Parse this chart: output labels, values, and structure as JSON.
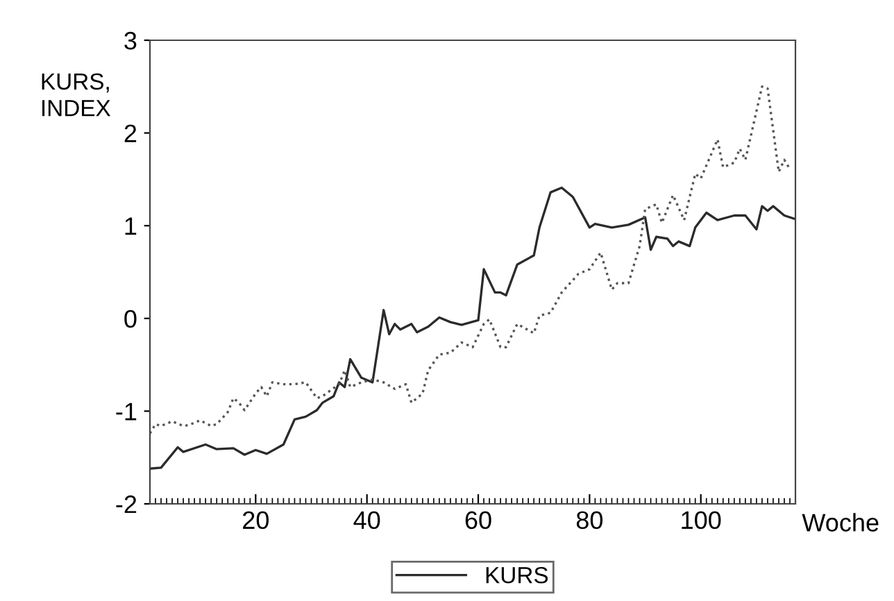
{
  "chart_data": {
    "type": "line",
    "xlabel": "Woche",
    "ylabel": "KURS, INDEX",
    "xlim": [
      1,
      117
    ],
    "ylim": [
      -2,
      3
    ],
    "xticks": [
      20,
      40,
      60,
      80,
      100
    ],
    "yticks": [
      -2,
      -1,
      0,
      1,
      2,
      3
    ],
    "grid": false,
    "legend": "bottom",
    "series": [
      {
        "name": "KURS",
        "color": "#2b2b2b",
        "line_style": "solid",
        "x": [
          1,
          3,
          6,
          7,
          11,
          13,
          16,
          18,
          20,
          22,
          25,
          27,
          29,
          31,
          32,
          34,
          35,
          36,
          37,
          39,
          41,
          43,
          44,
          45,
          46,
          48,
          49,
          51,
          53,
          55,
          57,
          60,
          61,
          63,
          64,
          65,
          67,
          70,
          71,
          73,
          75,
          77,
          80,
          81,
          84,
          87,
          90,
          91,
          92,
          94,
          95,
          96,
          98,
          99,
          101,
          103,
          106,
          108,
          110,
          111,
          112,
          113,
          115,
          117
        ],
        "values": [
          -1.62,
          -1.61,
          -1.39,
          -1.44,
          -1.36,
          -1.41,
          -1.4,
          -1.47,
          -1.42,
          -1.46,
          -1.36,
          -1.09,
          -1.06,
          -0.99,
          -0.91,
          -0.84,
          -0.69,
          -0.74,
          -0.44,
          -0.64,
          -0.69,
          0.09,
          -0.17,
          -0.06,
          -0.12,
          -0.06,
          -0.15,
          -0.09,
          0.01,
          -0.04,
          -0.07,
          -0.02,
          0.53,
          0.28,
          0.28,
          0.25,
          0.58,
          0.68,
          0.98,
          1.36,
          1.41,
          1.31,
          0.98,
          1.02,
          0.98,
          1.01,
          1.09,
          0.74,
          0.88,
          0.86,
          0.78,
          0.83,
          0.78,
          0.98,
          1.14,
          1.06,
          1.11,
          1.11,
          0.96,
          1.21,
          1.16,
          1.21,
          1.11,
          1.07
        ]
      },
      {
        "color": "#555555",
        "line_style": "dotted",
        "x": [
          1,
          2,
          3,
          5,
          7,
          8,
          10,
          12,
          13,
          15,
          16,
          17,
          18,
          20,
          21,
          22,
          23,
          25,
          27,
          29,
          31,
          32,
          35,
          36,
          37,
          39,
          41,
          43,
          45,
          47,
          48,
          50,
          51,
          53,
          55,
          57,
          59,
          61,
          62,
          64,
          65,
          67,
          70,
          71,
          73,
          75,
          78,
          80,
          82,
          84,
          85,
          87,
          89,
          90,
          92,
          93,
          95,
          97,
          99,
          100,
          103,
          104,
          106,
          107,
          108,
          111,
          112,
          114,
          115,
          116
        ],
        "values": [
          -1.24,
          -1.14,
          -1.16,
          -1.11,
          -1.16,
          -1.15,
          -1.1,
          -1.16,
          -1.14,
          -1.01,
          -0.86,
          -0.91,
          -0.99,
          -0.81,
          -0.74,
          -0.84,
          -0.69,
          -0.71,
          -0.71,
          -0.69,
          -0.86,
          -0.84,
          -0.71,
          -0.56,
          -0.74,
          -0.69,
          -0.66,
          -0.69,
          -0.76,
          -0.71,
          -0.91,
          -0.81,
          -0.56,
          -0.39,
          -0.37,
          -0.26,
          -0.31,
          -0.06,
          -0.01,
          -0.31,
          -0.31,
          -0.06,
          -0.16,
          0.03,
          0.06,
          0.28,
          0.48,
          0.53,
          0.71,
          0.31,
          0.38,
          0.38,
          0.78,
          1.18,
          1.23,
          1.03,
          1.33,
          1.06,
          1.56,
          1.51,
          1.93,
          1.63,
          1.68,
          1.83,
          1.71,
          2.5,
          2.48,
          1.58,
          1.71,
          1.61
        ]
      }
    ]
  }
}
